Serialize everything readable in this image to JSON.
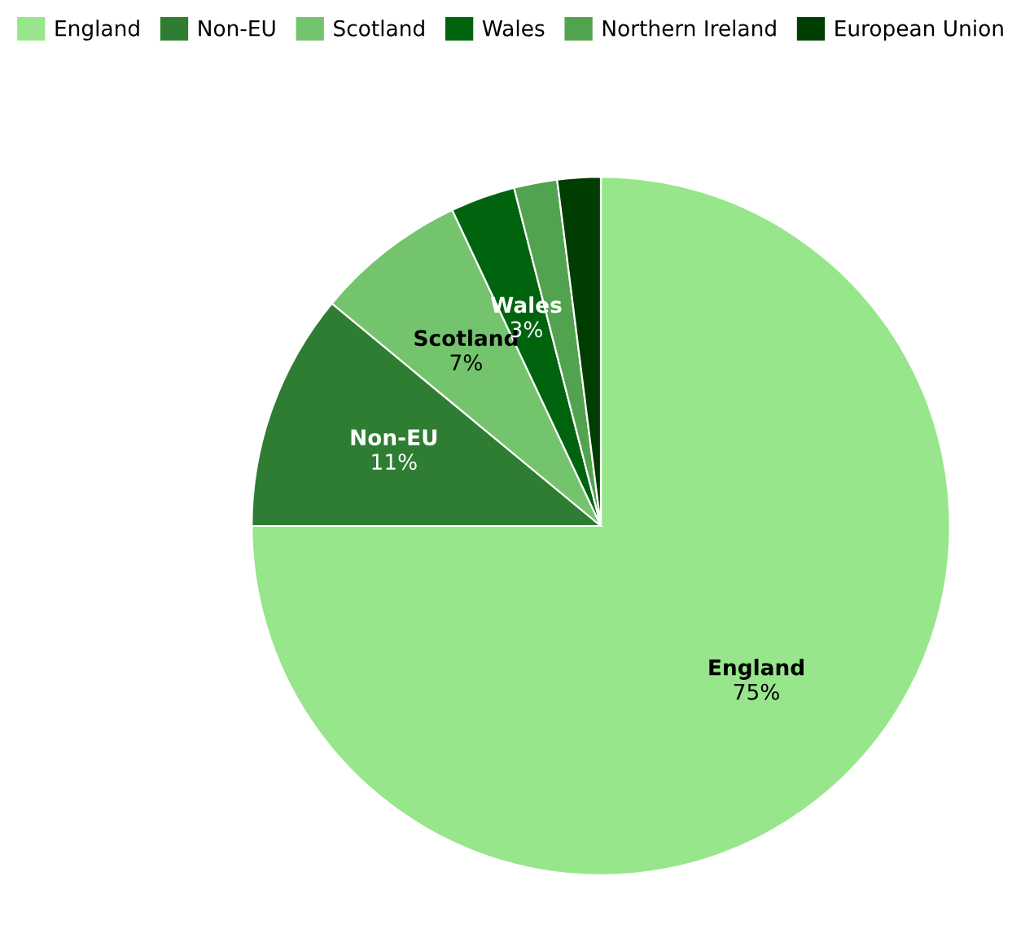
{
  "chart_data": {
    "type": "pie",
    "categories": [
      "England",
      "Non-EU",
      "Scotland",
      "Wales",
      "Northern Ireland",
      "European Union"
    ],
    "values": [
      75,
      11,
      7,
      3,
      2,
      2
    ],
    "value_labels": [
      "75%",
      "11%",
      "7%",
      "3%",
      null,
      null
    ],
    "colors": [
      "#98e68b",
      "#2e7d32",
      "#74c46d",
      "#00640f",
      "#52a34f",
      "#003d00"
    ],
    "legend": "top"
  }
}
